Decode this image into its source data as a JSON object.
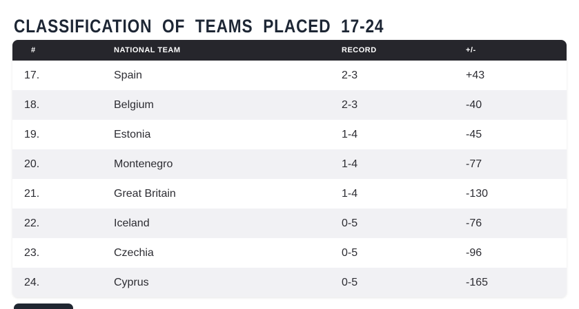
{
  "title": "CLASSIFICATION OF TEAMS PLACED 17-24",
  "colors": {
    "title_color": "#1d2634",
    "header_bg": "#26262c",
    "header_text": "#ffffff",
    "row_bg": "#ffffff",
    "row_alt_bg": "#f1f1f4",
    "body_text": "#2c2c32"
  },
  "chart_data": {
    "type": "table",
    "title": "CLASSIFICATION OF TEAMS PLACED 17-24",
    "columns": [
      "#",
      "NATIONAL TEAM",
      "RECORD",
      "+/-"
    ],
    "rows": [
      [
        "17.",
        "Spain",
        "2-3",
        "+43"
      ],
      [
        "18.",
        "Belgium",
        "2-3",
        "-40"
      ],
      [
        "19.",
        "Estonia",
        "1-4",
        "-45"
      ],
      [
        "20.",
        "Montenegro",
        "1-4",
        "-77"
      ],
      [
        "21.",
        "Great Britain",
        "1-4",
        "-130"
      ],
      [
        "22.",
        "Iceland",
        "0-5",
        "-76"
      ],
      [
        "23.",
        "Czechia",
        "0-5",
        "-96"
      ],
      [
        "24.",
        "Cyprus",
        "0-5",
        "-165"
      ]
    ]
  }
}
